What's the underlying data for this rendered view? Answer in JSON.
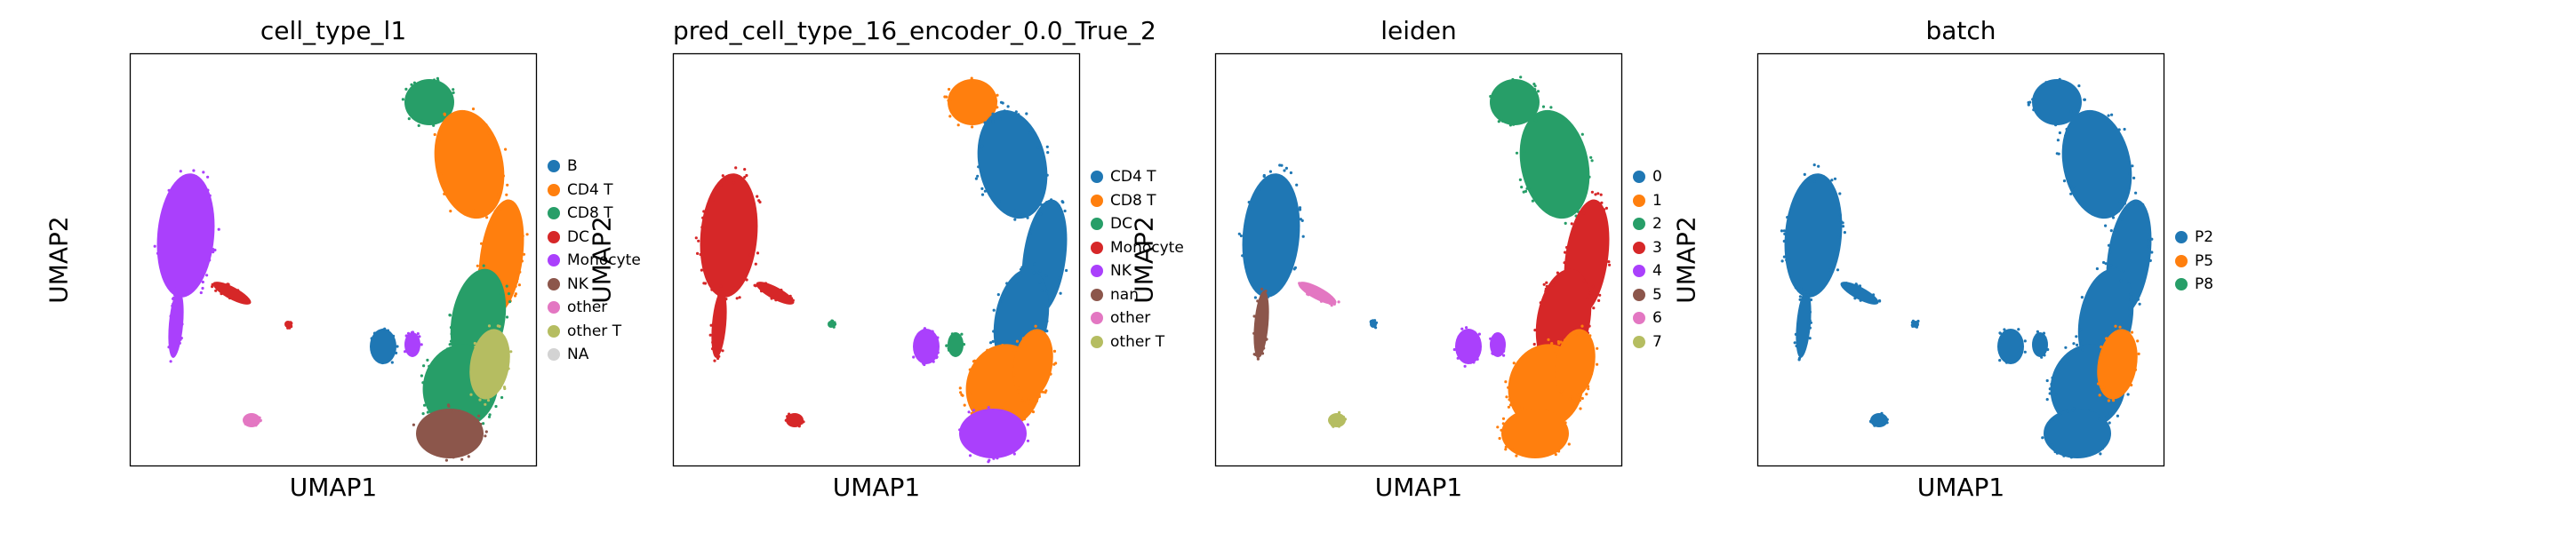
{
  "chart_data": [
    {
      "type": "scatter",
      "title": "cell_type_l1",
      "xlabel": "UMAP1",
      "ylabel": "UMAP2",
      "legend_placement": "right",
      "grid": false,
      "legend": [
        {
          "label": "B",
          "color": "#1f77b4"
        },
        {
          "label": "CD4 T",
          "color": "#ff7f0e"
        },
        {
          "label": "CD8 T",
          "color": "#279e68"
        },
        {
          "label": "DC",
          "color": "#d62728"
        },
        {
          "label": "Monocyte",
          "color": "#aa40fc"
        },
        {
          "label": "NK",
          "color": "#8c564b"
        },
        {
          "label": "other",
          "color": "#e377c2"
        },
        {
          "label": "other T",
          "color": "#b5bd61"
        },
        {
          "label": "NA",
          "color": "#d3d3d3"
        }
      ],
      "clusters": {
        "monocyte": "Monocyte",
        "mono_tail": "Monocyte",
        "mono_stream": "DC",
        "dc_small": "DC",
        "b_cluster": "B",
        "b_side": "Monocyte",
        "small_other": "other",
        "t_top": "CD8 T",
        "t_upper": "CD4 T",
        "t_right": "CD4 T",
        "t_mid": "CD8 T",
        "t_lower": "CD8 T",
        "t_mix": "other T",
        "nk": "NK"
      }
    },
    {
      "type": "scatter",
      "title": "pred_cell_type_16_encoder_0.0_True_2",
      "xlabel": "UMAP1",
      "ylabel": "UMAP2",
      "legend_placement": "right",
      "grid": false,
      "legend": [
        {
          "label": "CD4 T",
          "color": "#1f77b4"
        },
        {
          "label": "CD8 T",
          "color": "#ff7f0e"
        },
        {
          "label": "DC",
          "color": "#279e68"
        },
        {
          "label": "Monocyte",
          "color": "#d62728"
        },
        {
          "label": "NK",
          "color": "#aa40fc"
        },
        {
          "label": "nan",
          "color": "#8c564b"
        },
        {
          "label": "other",
          "color": "#e377c2"
        },
        {
          "label": "other T",
          "color": "#b5bd61"
        }
      ],
      "clusters": {
        "monocyte": "Monocyte",
        "mono_tail": "Monocyte",
        "mono_stream": "Monocyte",
        "dc_small": "DC",
        "b_cluster": "NK",
        "b_side": "DC",
        "small_other": "Monocyte",
        "t_top": "CD8 T",
        "t_upper": "CD4 T",
        "t_right": "CD4 T",
        "t_mid": "CD4 T",
        "t_lower": "CD8 T",
        "t_mix": "CD8 T",
        "nk": "NK"
      }
    },
    {
      "type": "scatter",
      "title": "leiden",
      "xlabel": "UMAP1",
      "ylabel": "UMAP2",
      "legend_placement": "right",
      "grid": false,
      "legend": [
        {
          "label": "0",
          "color": "#1f77b4"
        },
        {
          "label": "1",
          "color": "#ff7f0e"
        },
        {
          "label": "2",
          "color": "#279e68"
        },
        {
          "label": "3",
          "color": "#d62728"
        },
        {
          "label": "4",
          "color": "#aa40fc"
        },
        {
          "label": "5",
          "color": "#8c564b"
        },
        {
          "label": "6",
          "color": "#e377c2"
        },
        {
          "label": "7",
          "color": "#b5bd61"
        }
      ],
      "clusters": {
        "monocyte": "0",
        "mono_tail": "5",
        "mono_stream": "6",
        "dc_small": "0",
        "b_cluster": "4",
        "b_side": "4",
        "small_other": "7",
        "t_top": "2",
        "t_upper": "2",
        "t_right": "3",
        "t_mid": "3",
        "t_lower": "1",
        "t_mix": "1",
        "nk": "1"
      }
    },
    {
      "type": "scatter",
      "title": "batch",
      "xlabel": "UMAP1",
      "ylabel": "UMAP2",
      "legend_placement": "right",
      "grid": false,
      "legend": [
        {
          "label": "P2",
          "color": "#1f77b4"
        },
        {
          "label": "P5",
          "color": "#ff7f0e"
        },
        {
          "label": "P8",
          "color": "#279e68"
        }
      ],
      "clusters": {
        "monocyte": "P2",
        "mono_tail": "P2",
        "mono_stream": "P2",
        "dc_small": "P2",
        "b_cluster": "P2",
        "b_side": "P2",
        "small_other": "P2",
        "t_top": "P2",
        "t_upper": "P2",
        "t_right": "P2",
        "t_mid": "P2",
        "t_lower": "P2",
        "t_mix": "P5",
        "nk": "P2"
      }
    }
  ]
}
